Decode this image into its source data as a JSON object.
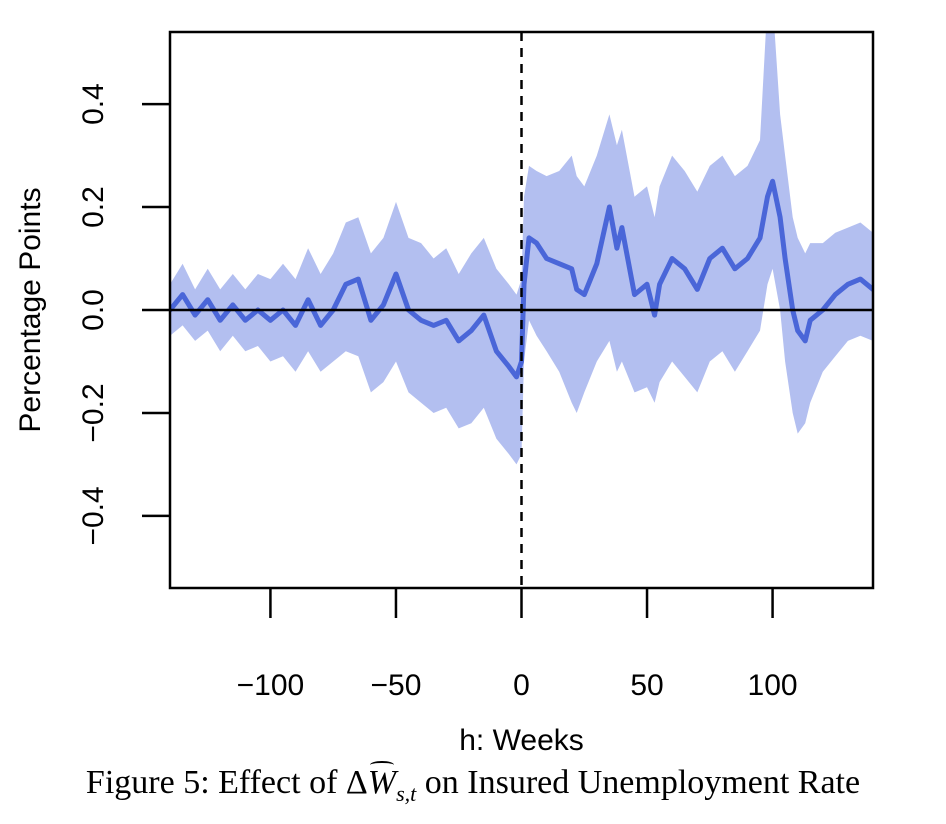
{
  "figure": {
    "caption_prefix": "Figure 5: Effect of ",
    "caption_math_delta": "Δ",
    "caption_math_var": "W",
    "caption_math_sub": "s,t",
    "caption_suffix": " on Insured Unemployment Rate"
  },
  "chart_data": {
    "type": "line",
    "xlabel": "h: Weeks",
    "ylabel": "Percentage Points",
    "xlim": [
      -140,
      140
    ],
    "ylim": [
      -0.54,
      0.54
    ],
    "xticks": [
      -100,
      -50,
      0,
      50,
      100
    ],
    "xtick_labels": [
      "−100",
      "−50",
      "0",
      "50",
      "100"
    ],
    "yticks": [
      -0.4,
      -0.2,
      0.0,
      0.2,
      0.4
    ],
    "ytick_labels": [
      "−0.4",
      "−0.2",
      "0.0",
      "0.2",
      "0.4"
    ],
    "reference_lines": {
      "horizontal_y": 0.0,
      "vertical_x": 0,
      "vertical_style": "dashed"
    },
    "colors": {
      "line": "#4a66d8",
      "band": "#b3bff0",
      "zero_line": "#000000"
    },
    "series": [
      {
        "type": "line_with_band",
        "x": [
          -140,
          -135,
          -130,
          -125,
          -120,
          -115,
          -110,
          -105,
          -100,
          -95,
          -90,
          -85,
          -80,
          -75,
          -70,
          -65,
          -60,
          -55,
          -50,
          -45,
          -40,
          -35,
          -30,
          -25,
          -20,
          -15,
          -10,
          -5,
          -2,
          0,
          1,
          3,
          6,
          10,
          15,
          20,
          22,
          25,
          30,
          35,
          38,
          40,
          45,
          50,
          53,
          55,
          60,
          65,
          70,
          75,
          80,
          85,
          90,
          95,
          98,
          100,
          103,
          105,
          108,
          110,
          113,
          115,
          120,
          125,
          130,
          135,
          140
        ],
        "y": [
          0.0,
          0.03,
          -0.01,
          0.02,
          -0.02,
          0.01,
          -0.02,
          0.0,
          -0.02,
          0.0,
          -0.03,
          0.02,
          -0.03,
          0.0,
          0.05,
          0.06,
          -0.02,
          0.01,
          0.07,
          0.0,
          -0.02,
          -0.03,
          -0.02,
          -0.06,
          -0.04,
          -0.01,
          -0.08,
          -0.11,
          -0.13,
          -0.1,
          0.05,
          0.14,
          0.13,
          0.1,
          0.09,
          0.08,
          0.04,
          0.03,
          0.09,
          0.2,
          0.12,
          0.16,
          0.03,
          0.05,
          -0.01,
          0.05,
          0.1,
          0.08,
          0.04,
          0.1,
          0.12,
          0.08,
          0.1,
          0.14,
          0.22,
          0.25,
          0.18,
          0.1,
          0.0,
          -0.04,
          -0.06,
          -0.02,
          0.0,
          0.03,
          0.05,
          0.06,
          0.04
        ],
        "lower": [
          -0.05,
          -0.03,
          -0.06,
          -0.04,
          -0.08,
          -0.05,
          -0.08,
          -0.07,
          -0.1,
          -0.09,
          -0.12,
          -0.08,
          -0.12,
          -0.1,
          -0.08,
          -0.09,
          -0.16,
          -0.14,
          -0.1,
          -0.16,
          -0.18,
          -0.2,
          -0.19,
          -0.23,
          -0.22,
          -0.19,
          -0.25,
          -0.28,
          -0.3,
          -0.28,
          -0.1,
          -0.02,
          -0.05,
          -0.08,
          -0.12,
          -0.18,
          -0.2,
          -0.16,
          -0.1,
          -0.06,
          -0.12,
          -0.1,
          -0.16,
          -0.15,
          -0.18,
          -0.14,
          -0.1,
          -0.13,
          -0.16,
          -0.1,
          -0.08,
          -0.12,
          -0.08,
          -0.04,
          0.05,
          0.08,
          0.0,
          -0.1,
          -0.2,
          -0.24,
          -0.22,
          -0.18,
          -0.12,
          -0.09,
          -0.06,
          -0.05,
          -0.06
        ],
        "upper": [
          0.05,
          0.09,
          0.04,
          0.08,
          0.04,
          0.07,
          0.04,
          0.07,
          0.06,
          0.09,
          0.06,
          0.12,
          0.07,
          0.11,
          0.17,
          0.18,
          0.11,
          0.14,
          0.21,
          0.14,
          0.13,
          0.1,
          0.12,
          0.07,
          0.11,
          0.14,
          0.08,
          0.05,
          0.03,
          0.06,
          0.22,
          0.28,
          0.27,
          0.26,
          0.27,
          0.3,
          0.26,
          0.24,
          0.3,
          0.38,
          0.32,
          0.35,
          0.22,
          0.24,
          0.18,
          0.24,
          0.3,
          0.27,
          0.23,
          0.28,
          0.3,
          0.26,
          0.28,
          0.33,
          0.6,
          0.6,
          0.38,
          0.3,
          0.18,
          0.14,
          0.11,
          0.13,
          0.13,
          0.15,
          0.16,
          0.17,
          0.15
        ]
      }
    ]
  }
}
